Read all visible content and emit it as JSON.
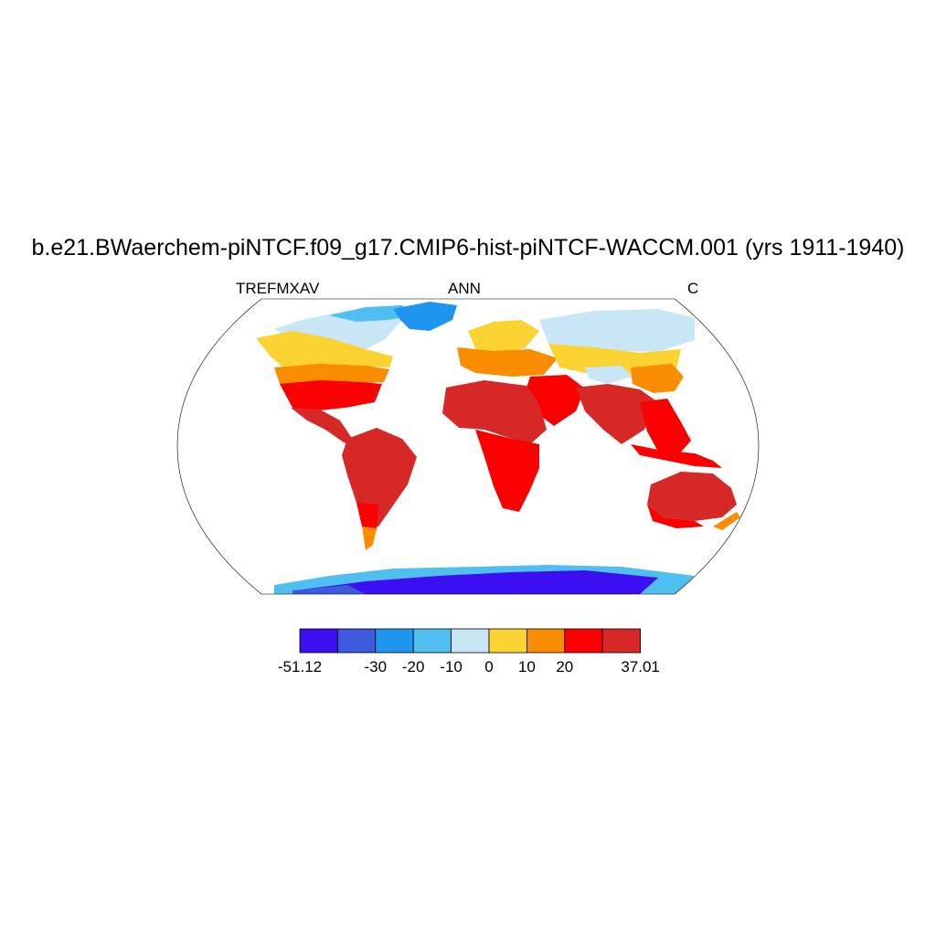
{
  "title": "b.e21.BWaerchem-piNTCF.f09_g17.CMIP6-hist-piNTCF-WACCM.001 (yrs 1911-1940)",
  "subtitle_left": "TREFMXAV",
  "subtitle_center": "ANN",
  "subtitle_right": "C",
  "colorbar": {
    "colors": [
      "#3c0ff0",
      "#3c5adc",
      "#1e96f0",
      "#50bef0",
      "#c8e6f5",
      "#fad232",
      "#fa8c00",
      "#fa0000",
      "#d72828"
    ],
    "boundary_labels": [
      {
        "label": "-51.12",
        "index": 0
      },
      {
        "label": "-30",
        "index": 2
      },
      {
        "label": "-20",
        "index": 3
      },
      {
        "label": "-10",
        "index": 4
      },
      {
        "label": "0",
        "index": 5
      },
      {
        "label": "10",
        "index": 6
      },
      {
        "label": "20",
        "index": 7
      },
      {
        "label": "37.01",
        "index": 9
      }
    ]
  },
  "chart_data": {
    "type": "heatmap",
    "variable": "TREFMXAV",
    "season": "ANN",
    "units": "C",
    "min": -51.12,
    "max": 37.01,
    "levels": [
      -30,
      -20,
      -10,
      0,
      10,
      20
    ],
    "projection": "Robinson"
  }
}
